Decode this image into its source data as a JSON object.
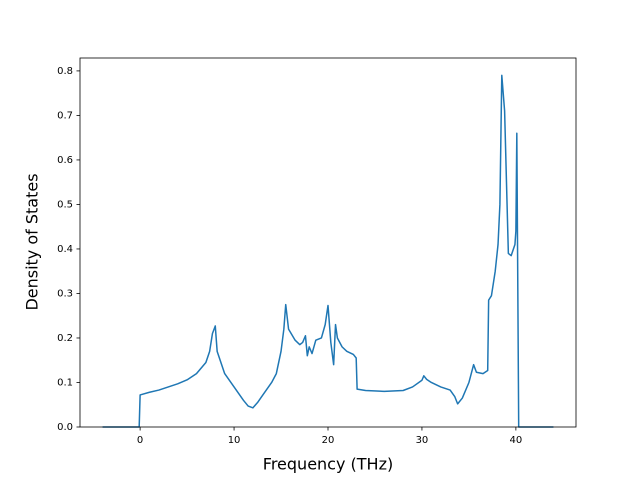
{
  "chart_data": {
    "type": "line",
    "x_label": "Frequency (THz)",
    "y_label": "Density of States",
    "x": [
      -4,
      -0.1,
      0,
      1,
      2,
      3,
      4,
      5,
      6,
      7,
      7.4,
      7.7,
      8,
      8.2,
      9,
      10,
      11,
      11.5,
      12,
      12.5,
      13,
      14,
      14.5,
      15,
      15.3,
      15.5,
      15.8,
      16.5,
      17,
      17.3,
      17.6,
      17.8,
      18,
      18.3,
      18.7,
      19.3,
      19.7,
      20,
      20.3,
      20.6,
      20.8,
      21,
      21.5,
      22,
      22.7,
      23,
      23.1,
      24,
      26,
      28,
      29,
      30,
      30.2,
      30.5,
      31,
      32,
      33,
      33.5,
      33.8,
      34.3,
      35,
      35.5,
      35.8,
      36.5,
      37,
      37.1,
      37.4,
      37.8,
      38.1,
      38.3,
      38.5,
      38.8,
      39,
      39.2,
      39.5,
      39.9,
      40,
      40.1,
      40.3,
      44
    ],
    "values": [
      0,
      0,
      0.072,
      0.078,
      0.083,
      0.09,
      0.097,
      0.106,
      0.12,
      0.145,
      0.17,
      0.21,
      0.227,
      0.17,
      0.12,
      0.09,
      0.06,
      0.047,
      0.043,
      0.055,
      0.07,
      0.1,
      0.12,
      0.17,
      0.22,
      0.275,
      0.22,
      0.195,
      0.185,
      0.19,
      0.205,
      0.16,
      0.18,
      0.165,
      0.195,
      0.2,
      0.23,
      0.273,
      0.19,
      0.14,
      0.23,
      0.2,
      0.18,
      0.17,
      0.163,
      0.155,
      0.085,
      0.082,
      0.08,
      0.082,
      0.09,
      0.105,
      0.115,
      0.107,
      0.1,
      0.09,
      0.083,
      0.068,
      0.052,
      0.065,
      0.1,
      0.14,
      0.123,
      0.12,
      0.127,
      0.285,
      0.295,
      0.35,
      0.41,
      0.5,
      0.79,
      0.71,
      0.55,
      0.39,
      0.385,
      0.41,
      0.44,
      0.66,
      0,
      0
    ],
    "color": "#1f77b4",
    "xlim": [
      -6.4,
      46.4
    ],
    "xticks": [
      0,
      10,
      20,
      30,
      40
    ],
    "ylim": [
      0,
      0.829
    ],
    "yticks": [
      {
        "value": 0,
        "label": "0.0"
      },
      0.1,
      0.2,
      0.3,
      0.4,
      0.5,
      0.6,
      0.7,
      0.8
    ],
    "grid": false
  }
}
